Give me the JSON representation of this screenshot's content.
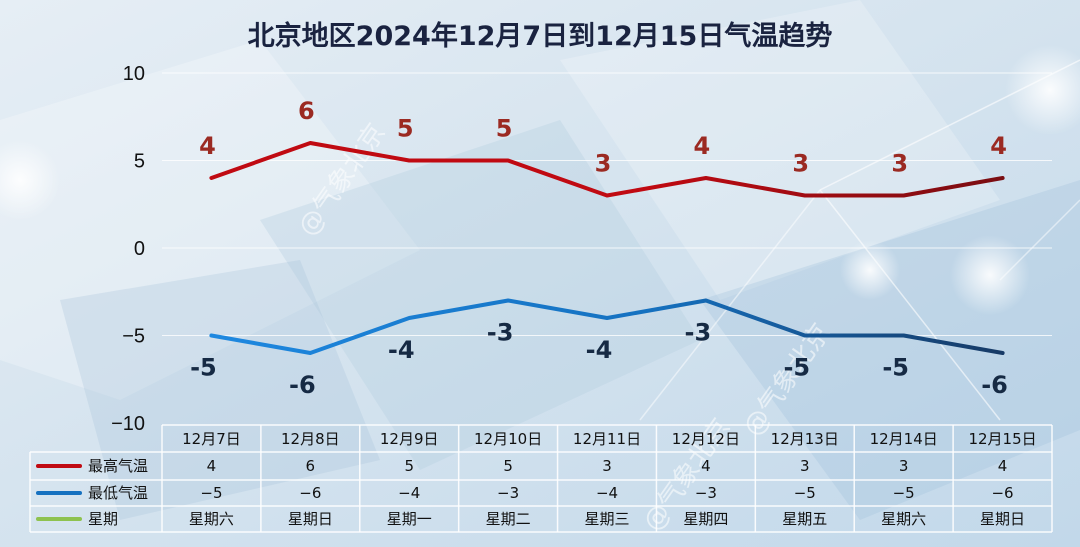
{
  "colors": {
    "high": "#c00a12",
    "high_end": "#7a0d12",
    "low": "#1571c0",
    "low_end": "#173a66",
    "weekday": "#8ec24f",
    "high_label": "#9b2a22",
    "low_label": "#162a44"
  },
  "chart_data": {
    "type": "line",
    "title": "北京地区2024年12月7日到12月15日气温趋势",
    "categories": [
      "12月7日",
      "12月8日",
      "12月9日",
      "12月10日",
      "12月11日",
      "12月12日",
      "12月13日",
      "12月14日",
      "12月15日"
    ],
    "ylim": [
      -10,
      10
    ],
    "yticks": [
      10,
      5,
      0,
      -5,
      -10
    ],
    "grid": true,
    "series": [
      {
        "name": "最高气温",
        "values": [
          4,
          6,
          5,
          5,
          3,
          4,
          3,
          3,
          4
        ]
      },
      {
        "name": "最低气温",
        "values": [
          -5,
          -6,
          -4,
          -3,
          -4,
          -3,
          -5,
          -5,
          -6
        ]
      }
    ],
    "weekday_row": {
      "name": "星期",
      "values": [
        "星期六",
        "星期日",
        "星期一",
        "星期二",
        "星期三",
        "星期四",
        "星期五",
        "星期六",
        "星期日"
      ]
    },
    "table_values": {
      "high": [
        "4",
        "6",
        "5",
        "5",
        "3",
        "4",
        "3",
        "3",
        "4"
      ],
      "low": [
        "−5",
        "−6",
        "−4",
        "−3",
        "−4",
        "−3",
        "−5",
        "−5",
        "−6"
      ]
    }
  },
  "watermark": "@气象北京"
}
